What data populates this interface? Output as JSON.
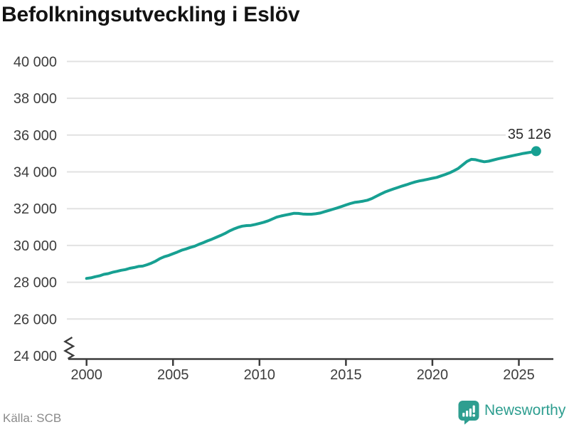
{
  "title": "Befolkningsutveckling i Eslöv",
  "source": "Källa: SCB",
  "footer": {
    "brand": "Newsworthy"
  },
  "annotation": {
    "last_value_label": "35 126"
  },
  "colors": {
    "line": "#17a092",
    "brand": "#2e9e90",
    "grid": "#e2e2e2",
    "axis": "#3c3c3c",
    "tick_text": "#3d3d3d",
    "title_text": "#131313",
    "annotation_text": "#2a2a2a",
    "source_text": "#8a8a8a"
  },
  "chart_data": {
    "type": "line",
    "title": "Befolkningsutveckling i Eslöv",
    "xlabel": "",
    "ylabel": "",
    "grid": "horizontal",
    "legend": "none",
    "axis_break_at_y_bottom": true,
    "xlim": [
      1998.85,
      2027.0
    ],
    "ylim": [
      24000,
      40000
    ],
    "x_ticks": [
      2000,
      2005,
      2010,
      2015,
      2020,
      2025
    ],
    "x_tick_labels": [
      "2000",
      "2005",
      "2010",
      "2015",
      "2020",
      "2025"
    ],
    "y_ticks": [
      40000,
      38000,
      36000,
      34000,
      32000,
      30000,
      28000,
      26000,
      24000
    ],
    "y_tick_labels": [
      "40 000",
      "38 000",
      "36 000",
      "34 000",
      "32 000",
      "30 000",
      "28 000",
      "26 000",
      "24 000"
    ],
    "series": [
      {
        "name": "Befolkning i Eslöv",
        "x": [
          2000.0,
          2000.25,
          2000.5,
          2000.75,
          2001.0,
          2001.25,
          2001.5,
          2001.75,
          2002.0,
          2002.25,
          2002.5,
          2002.75,
          2003.0,
          2003.25,
          2003.5,
          2003.75,
          2004.0,
          2004.25,
          2004.5,
          2004.75,
          2005.0,
          2005.25,
          2005.5,
          2005.75,
          2006.0,
          2006.25,
          2006.5,
          2006.75,
          2007.0,
          2007.25,
          2007.5,
          2007.75,
          2008.0,
          2008.25,
          2008.5,
          2008.75,
          2009.0,
          2009.25,
          2009.5,
          2009.75,
          2010.0,
          2010.25,
          2010.5,
          2010.75,
          2011.0,
          2011.25,
          2011.5,
          2011.75,
          2012.0,
          2012.25,
          2012.5,
          2012.75,
          2013.0,
          2013.25,
          2013.5,
          2013.75,
          2014.0,
          2014.25,
          2014.5,
          2014.75,
          2015.0,
          2015.25,
          2015.5,
          2015.75,
          2016.0,
          2016.25,
          2016.5,
          2016.75,
          2017.0,
          2017.25,
          2017.5,
          2017.75,
          2018.0,
          2018.25,
          2018.5,
          2018.75,
          2019.0,
          2019.25,
          2019.5,
          2019.75,
          2020.0,
          2020.25,
          2020.5,
          2020.75,
          2021.0,
          2021.25,
          2021.5,
          2021.75,
          2022.0,
          2022.25,
          2022.5,
          2022.75,
          2023.0,
          2023.25,
          2023.5,
          2023.75,
          2024.0,
          2024.25,
          2024.5,
          2024.75,
          2025.0,
          2025.25,
          2025.5,
          2025.75,
          2026.0
        ],
        "y": [
          28210,
          28240,
          28300,
          28350,
          28430,
          28470,
          28540,
          28590,
          28650,
          28690,
          28760,
          28800,
          28860,
          28880,
          28950,
          29040,
          29150,
          29290,
          29390,
          29460,
          29550,
          29640,
          29740,
          29810,
          29890,
          29960,
          30060,
          30150,
          30250,
          30340,
          30440,
          30540,
          30650,
          30780,
          30890,
          30980,
          31050,
          31080,
          31090,
          31140,
          31200,
          31260,
          31340,
          31440,
          31540,
          31600,
          31650,
          31700,
          31750,
          31740,
          31710,
          31700,
          31700,
          31720,
          31760,
          31830,
          31900,
          31970,
          32040,
          32120,
          32200,
          32280,
          32340,
          32370,
          32410,
          32460,
          32550,
          32670,
          32790,
          32900,
          32990,
          33070,
          33150,
          33230,
          33300,
          33380,
          33450,
          33510,
          33550,
          33600,
          33650,
          33700,
          33780,
          33860,
          33950,
          34060,
          34190,
          34380,
          34570,
          34680,
          34660,
          34600,
          34550,
          34580,
          34640,
          34700,
          34750,
          34800,
          34850,
          34900,
          34950,
          35000,
          35040,
          35080,
          35126
        ]
      }
    ],
    "last_point": {
      "x": 2026.0,
      "y": 35126,
      "label": "35 126"
    }
  }
}
